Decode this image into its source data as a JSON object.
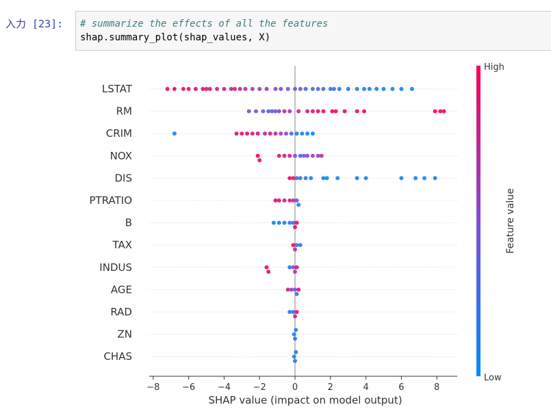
{
  "cell": {
    "prompt": "入力 [23]:",
    "code_line1": "# summarize the effects of all the features",
    "code_line2": "shap.summary_plot(shap_values, X)"
  },
  "chart_data": {
    "type": "scatter",
    "subtype": "beeswarm",
    "xlabel": "SHAP value (impact on model output)",
    "xlim": [
      -8.2,
      9.2
    ],
    "xticks": [
      -8,
      -6,
      -4,
      -2,
      0,
      2,
      4,
      6,
      8
    ],
    "xtick_labels": [
      "−8",
      "−6",
      "−4",
      "−2",
      "0",
      "2",
      "4",
      "6",
      "8"
    ],
    "colorbar": {
      "label": "Feature value",
      "high": "High",
      "low": "Low",
      "high_color": "#ff0052",
      "mid_color": "#7e4ed6",
      "low_color": "#008bfb"
    },
    "grid": "horizontal dotted per feature",
    "features": [
      {
        "name": "LSTAT",
        "points": [
          [
            -7.2,
            1.0
          ],
          [
            -6.8,
            1.0
          ],
          [
            -6.3,
            0.95
          ],
          [
            -6.0,
            0.95
          ],
          [
            -5.6,
            0.9
          ],
          [
            -5.2,
            0.9
          ],
          [
            -5.0,
            0.9
          ],
          [
            -4.8,
            0.88
          ],
          [
            -4.4,
            0.85
          ],
          [
            -4.0,
            0.85
          ],
          [
            -3.6,
            0.8
          ],
          [
            -3.4,
            0.85
          ],
          [
            -3.1,
            0.75
          ],
          [
            -2.8,
            0.7
          ],
          [
            -2.4,
            0.65
          ],
          [
            -2.0,
            0.6
          ],
          [
            -1.6,
            0.6
          ],
          [
            -1.1,
            0.55
          ],
          [
            -0.8,
            0.5
          ],
          [
            -0.4,
            0.45
          ],
          [
            0.0,
            0.5
          ],
          [
            0.3,
            0.4
          ],
          [
            0.6,
            0.35
          ],
          [
            1.0,
            0.3
          ],
          [
            1.3,
            0.3
          ],
          [
            1.6,
            0.25
          ],
          [
            2.0,
            0.2
          ],
          [
            2.2,
            0.2
          ],
          [
            2.5,
            0.15
          ],
          [
            3.0,
            0.15
          ],
          [
            3.5,
            0.1
          ],
          [
            3.9,
            0.1
          ],
          [
            4.2,
            0.1
          ],
          [
            4.6,
            0.08
          ],
          [
            5.0,
            0.05
          ],
          [
            5.5,
            0.05
          ],
          [
            6.0,
            0.05
          ],
          [
            6.6,
            0.05
          ]
        ]
      },
      {
        "name": "RM",
        "points": [
          [
            -2.6,
            0.55
          ],
          [
            -2.2,
            0.45
          ],
          [
            -1.8,
            0.4
          ],
          [
            -1.5,
            0.35
          ],
          [
            -1.3,
            0.3
          ],
          [
            -1.1,
            0.45
          ],
          [
            -0.9,
            0.55
          ],
          [
            -0.6,
            0.7
          ],
          [
            -0.3,
            0.65
          ],
          [
            0.2,
            0.75
          ],
          [
            0.7,
            0.85
          ],
          [
            1.0,
            0.9
          ],
          [
            1.3,
            0.9
          ],
          [
            1.6,
            0.9
          ],
          [
            2.1,
            0.95
          ],
          [
            2.3,
            0.95
          ],
          [
            2.8,
            0.95
          ],
          [
            3.5,
            1.0
          ],
          [
            3.9,
            1.0
          ],
          [
            7.9,
            1.0
          ],
          [
            8.2,
            1.0
          ],
          [
            8.4,
            1.0
          ]
        ]
      },
      {
        "name": "CRIM",
        "points": [
          [
            -6.8,
            0.1
          ],
          [
            -3.3,
            0.95
          ],
          [
            -3.0,
            0.9
          ],
          [
            -2.7,
            0.9
          ],
          [
            -2.4,
            0.85
          ],
          [
            -2.1,
            0.85
          ],
          [
            -1.7,
            0.8
          ],
          [
            -1.4,
            0.8
          ],
          [
            -1.1,
            0.75
          ],
          [
            -0.8,
            0.65
          ],
          [
            -0.5,
            0.55
          ],
          [
            -0.2,
            0.3
          ],
          [
            0.1,
            0.15
          ],
          [
            0.4,
            0.1
          ],
          [
            0.7,
            0.05
          ],
          [
            1.0,
            0.05
          ]
        ]
      },
      {
        "name": "NOX",
        "points": [
          [
            -2.1,
            1.0
          ],
          [
            -2.0,
            0.95
          ],
          [
            -0.9,
            0.9
          ],
          [
            -0.6,
            0.85
          ],
          [
            -0.3,
            0.8
          ],
          [
            0.0,
            0.5
          ],
          [
            0.3,
            0.35
          ],
          [
            0.5,
            0.45
          ],
          [
            0.7,
            0.55
          ],
          [
            1.0,
            0.6
          ],
          [
            1.3,
            0.65
          ],
          [
            1.5,
            0.7
          ]
        ]
      },
      {
        "name": "DIS",
        "points": [
          [
            -0.3,
            0.95
          ],
          [
            -0.1,
            0.85
          ],
          [
            0.1,
            0.3
          ],
          [
            0.3,
            0.2
          ],
          [
            0.6,
            0.15
          ],
          [
            0.9,
            0.1
          ],
          [
            1.6,
            0.05
          ],
          [
            1.8,
            0.05
          ],
          [
            2.4,
            0.05
          ],
          [
            3.5,
            0.05
          ],
          [
            4.0,
            0.05
          ],
          [
            6.0,
            0.05
          ],
          [
            6.8,
            0.05
          ],
          [
            7.3,
            0.05
          ],
          [
            7.9,
            0.05
          ]
        ]
      },
      {
        "name": "PTRATIO",
        "points": [
          [
            -1.1,
            0.95
          ],
          [
            -0.9,
            0.9
          ],
          [
            -0.6,
            0.85
          ],
          [
            -0.3,
            0.8
          ],
          [
            -0.1,
            0.75
          ],
          [
            0.1,
            0.4
          ],
          [
            0.2,
            0.2
          ]
        ]
      },
      {
        "name": "B",
        "points": [
          [
            -1.2,
            0.05
          ],
          [
            -0.9,
            0.1
          ],
          [
            -0.6,
            0.1
          ],
          [
            -0.3,
            0.2
          ],
          [
            -0.1,
            0.3
          ],
          [
            0.0,
            0.9
          ],
          [
            0.1,
            0.95
          ]
        ]
      },
      {
        "name": "TAX",
        "points": [
          [
            -0.1,
            0.95
          ],
          [
            0.0,
            0.7
          ],
          [
            0.1,
            0.3
          ],
          [
            0.3,
            0.1
          ]
        ]
      },
      {
        "name": "INDUS",
        "points": [
          [
            -1.6,
            1.0
          ],
          [
            -1.5,
            0.95
          ],
          [
            -0.3,
            0.2
          ],
          [
            -0.1,
            0.5
          ],
          [
            0.0,
            0.7
          ],
          [
            0.1,
            0.9
          ]
        ]
      },
      {
        "name": "AGE",
        "points": [
          [
            -0.4,
            0.8
          ],
          [
            -0.2,
            0.6
          ],
          [
            0.0,
            0.4
          ],
          [
            0.1,
            0.2
          ],
          [
            0.2,
            0.95
          ]
        ]
      },
      {
        "name": "RAD",
        "points": [
          [
            -0.3,
            0.1
          ],
          [
            -0.1,
            0.3
          ],
          [
            0.0,
            0.8
          ],
          [
            0.1,
            0.95
          ]
        ]
      },
      {
        "name": "ZN",
        "points": [
          [
            -0.05,
            0.1
          ],
          [
            0.0,
            0.15
          ],
          [
            0.05,
            0.1
          ]
        ]
      },
      {
        "name": "CHAS",
        "points": [
          [
            -0.05,
            0.1
          ],
          [
            0.0,
            0.2
          ],
          [
            0.05,
            0.15
          ]
        ]
      }
    ]
  }
}
